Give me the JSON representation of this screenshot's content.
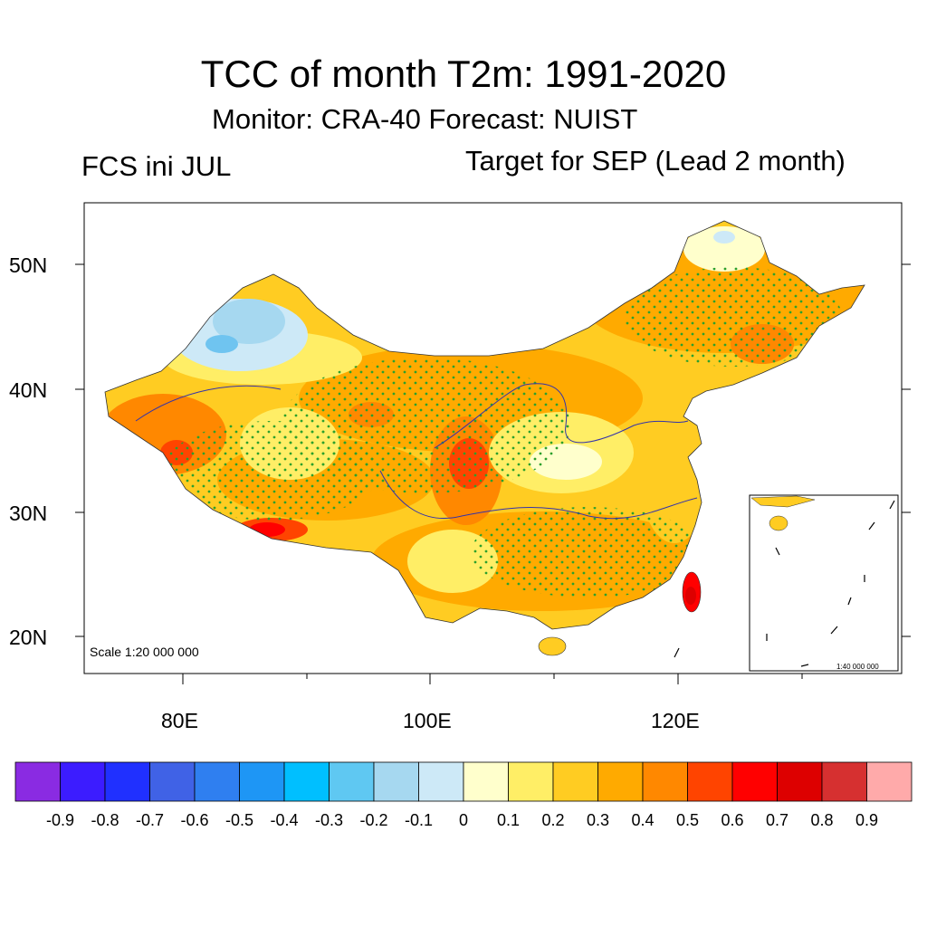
{
  "header": {
    "title": "TCC of month T2m: 1991-2020",
    "subtitle": "Monitor: CRA-40   Forecast: NUIST",
    "left_label": "FCS ini JUL",
    "right_label": "Target for SEP (Lead 2 month)"
  },
  "map": {
    "lat_labels": [
      "50N",
      "40N",
      "30N",
      "20N"
    ],
    "lon_labels": [
      "80E",
      "100E",
      "120E"
    ],
    "scale_main": "Scale 1:20 000 000",
    "scale_inset": "1:40 000 000",
    "stipple_color": "#2ca02c",
    "region_colors": [
      "#ffffcc",
      "#ffee66",
      "#ffcc22",
      "#ffaa00",
      "#ff8800",
      "#ff4400",
      "#ff0000",
      "#cde9f7",
      "#a6d8f0",
      "#6fc4f0"
    ]
  },
  "colorbar": {
    "colors": [
      "#8a2be2",
      "#3c1cff",
      "#2030ff",
      "#4062e6",
      "#2f7ff0",
      "#1e96f5",
      "#00bfff",
      "#5fc8f2",
      "#a6d8f0",
      "#cde9f7",
      "#ffffcc",
      "#ffee66",
      "#ffcc22",
      "#ffaa00",
      "#ff8800",
      "#ff4400",
      "#ff0000",
      "#dd0000",
      "#d63030",
      "#ffaaaa"
    ],
    "labels": [
      "-0.9",
      "-0.8",
      "-0.7",
      "-0.6",
      "-0.5",
      "-0.4",
      "-0.3",
      "-0.2",
      "-0.1",
      "0",
      "0.1",
      "0.2",
      "0.3",
      "0.4",
      "0.5",
      "0.6",
      "0.7",
      "0.8",
      "0.9"
    ]
  }
}
